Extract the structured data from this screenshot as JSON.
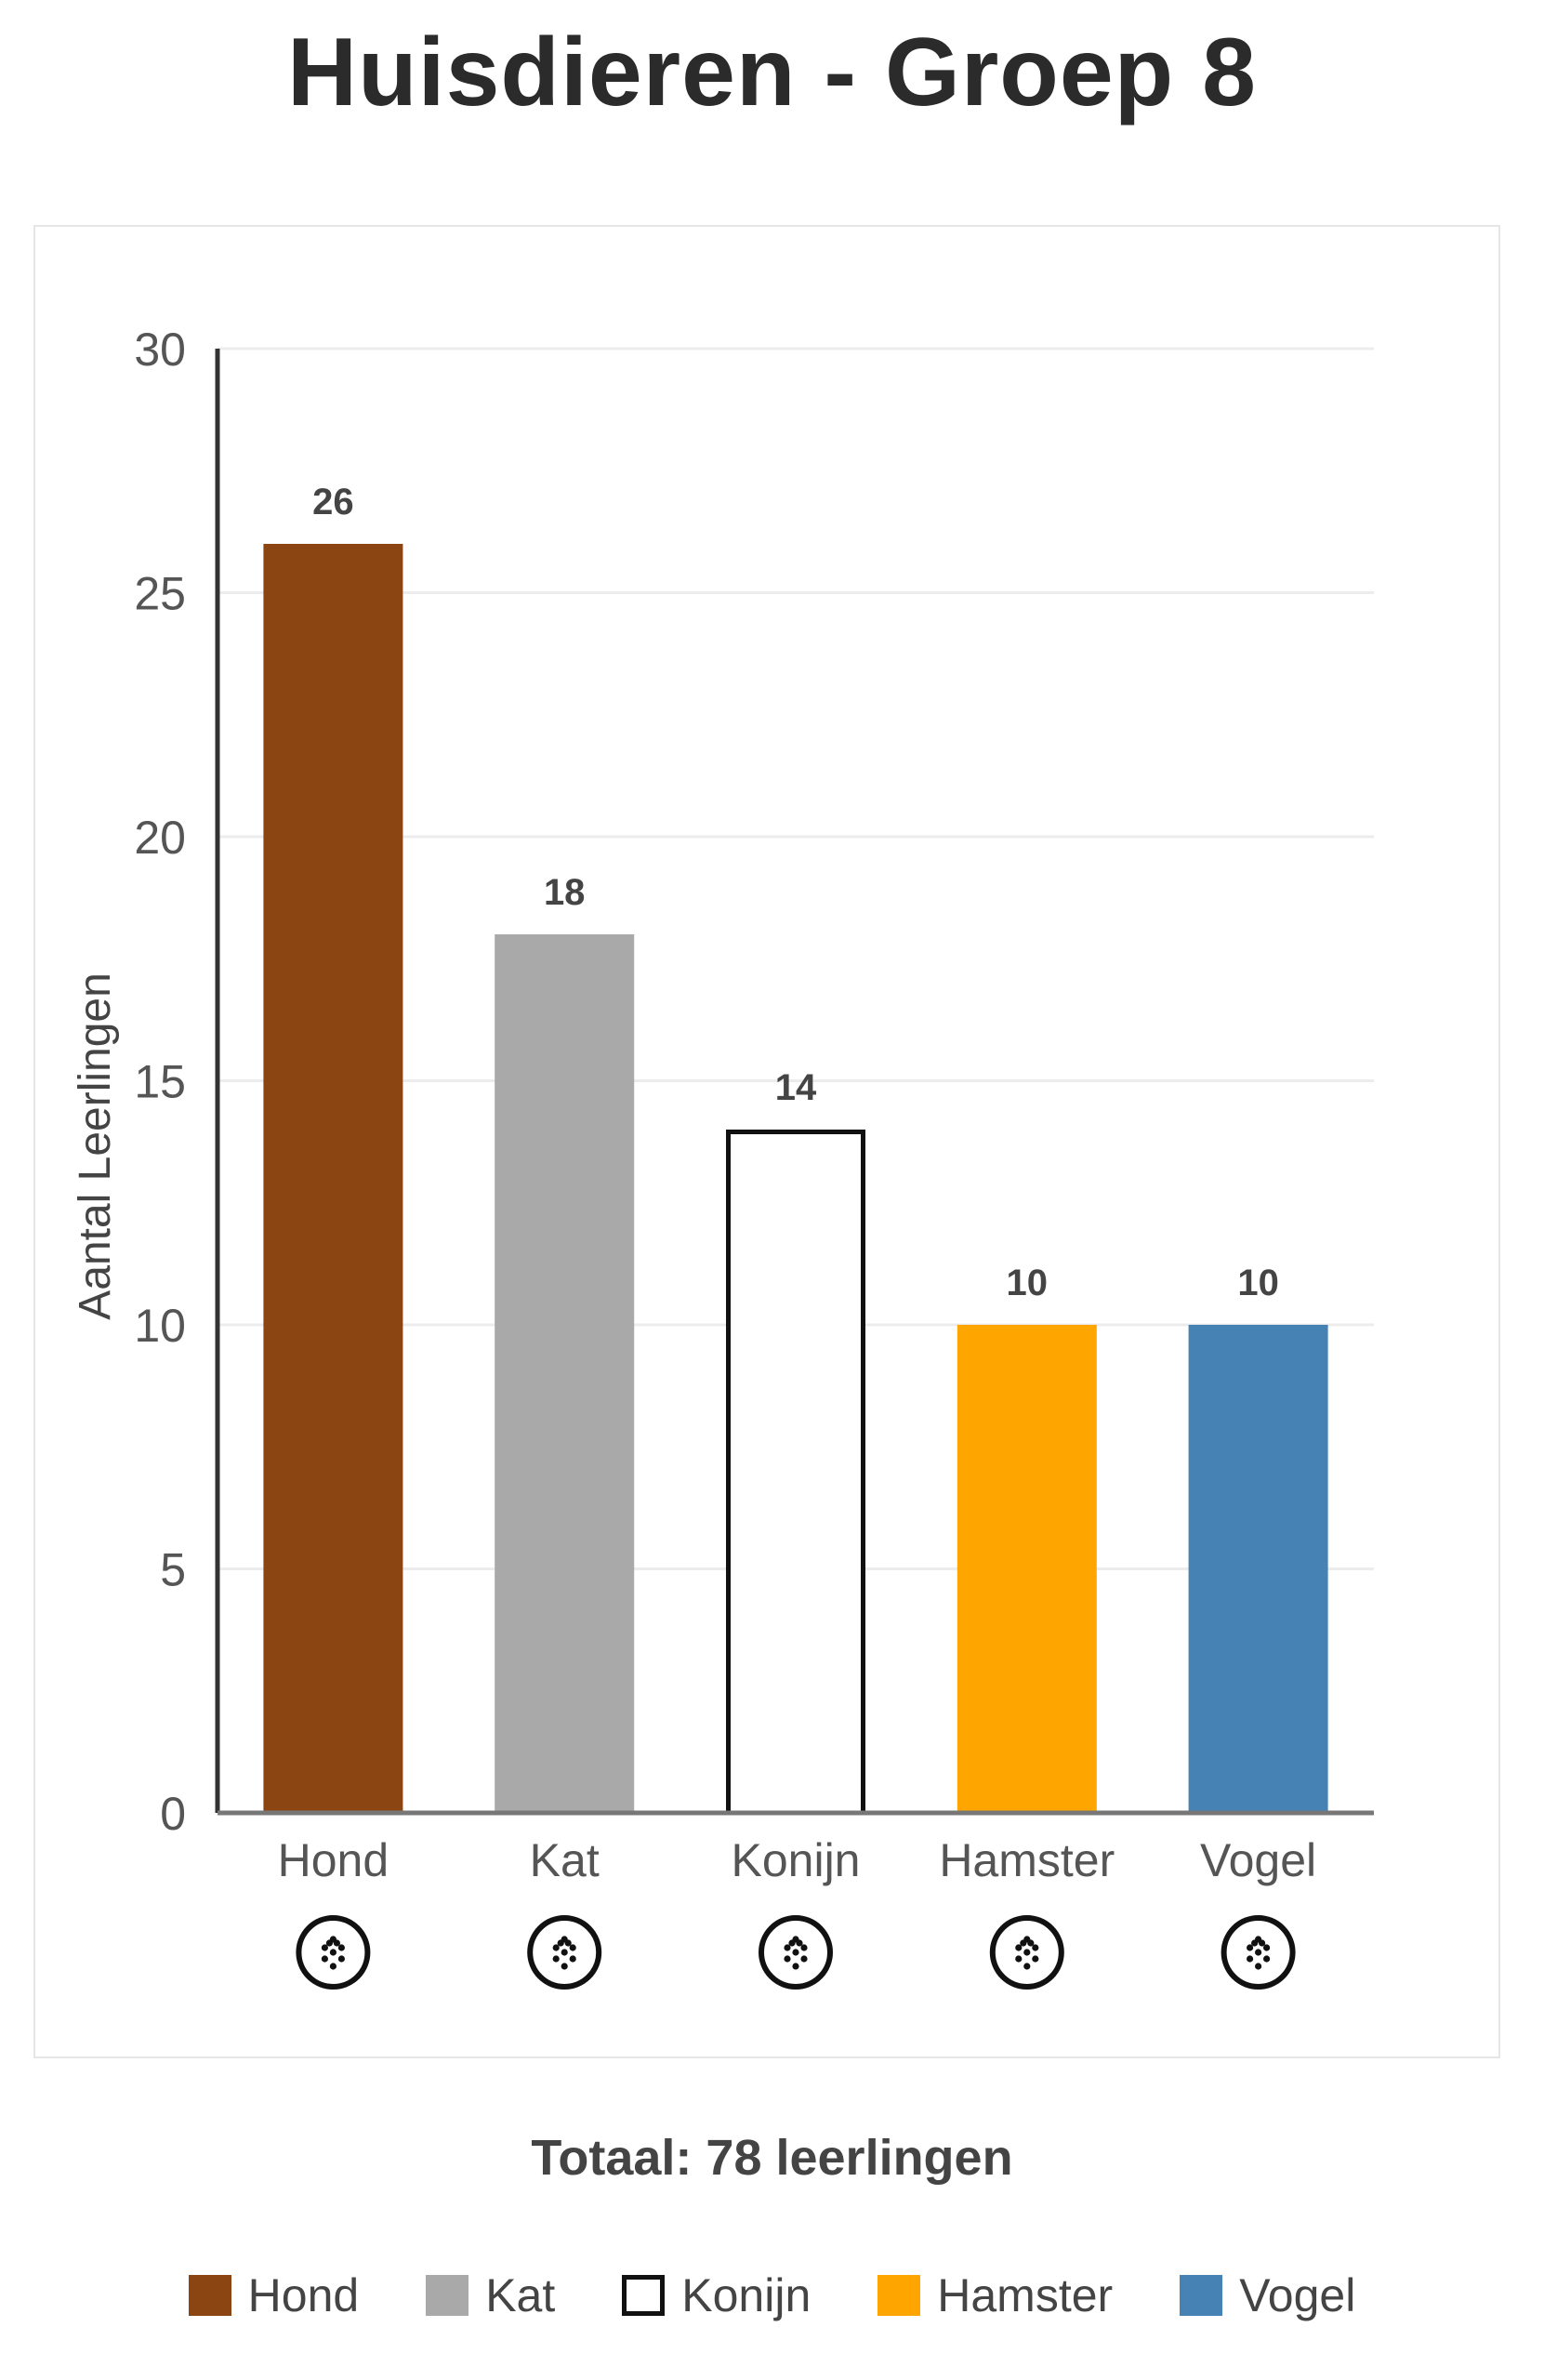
{
  "title": "Huisdieren - Groep 8",
  "total_label": "Totaal: 78 leerlingen",
  "chart_data": {
    "type": "bar",
    "title": "Huisdieren - Groep 8",
    "xlabel": "",
    "ylabel": "Aantal Leerlingen",
    "ylim": [
      0,
      30
    ],
    "yticks": [
      0,
      5,
      10,
      15,
      20,
      25,
      30
    ],
    "grid": true,
    "categories": [
      "Hond",
      "Kat",
      "Konijn",
      "Hamster",
      "Vogel"
    ],
    "values": [
      26,
      18,
      14,
      10,
      10
    ],
    "data_labels": [
      "26",
      "18",
      "14",
      "10",
      "10"
    ],
    "colors": [
      "#8B4513",
      "#A9A9A9",
      "#FFFFFF",
      "#FFA500",
      "#4682B4"
    ],
    "category_icon": "braille-dots-icon",
    "legend_placement": "bottom"
  },
  "legend": [
    {
      "label": "Hond",
      "color": "#8B4513"
    },
    {
      "label": "Kat",
      "color": "#A9A9A9"
    },
    {
      "label": "Konijn",
      "color": "#FFFFFF",
      "outlined": true
    },
    {
      "label": "Hamster",
      "color": "#FFA500"
    },
    {
      "label": "Vogel",
      "color": "#4682B4"
    }
  ]
}
